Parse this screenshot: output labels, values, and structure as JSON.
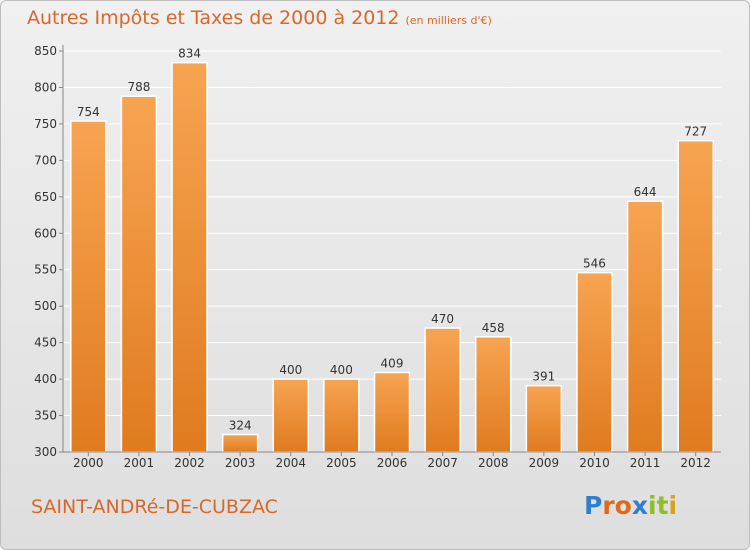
{
  "title": "Autres Impôts et Taxes de 2000 à 2012",
  "subtitle": "(en milliers d'€)",
  "footer": {
    "city": "SAINT-ANDRé-DE-CUBZAC",
    "logo": "Proxiti"
  },
  "colors": {
    "bar_top": "#f7a452",
    "bar_bottom": "#e07b1f",
    "title": "#d8682a"
  },
  "chart_data": {
    "type": "bar",
    "title": "Autres Impôts et Taxes de 2000 à 2012",
    "subtitle": "(en milliers d'€)",
    "xlabel": "",
    "ylabel": "",
    "categories": [
      "2000",
      "2001",
      "2002",
      "2003",
      "2004",
      "2005",
      "2006",
      "2007",
      "2008",
      "2009",
      "2010",
      "2011",
      "2012"
    ],
    "values": [
      754,
      788,
      834,
      324,
      400,
      400,
      409,
      470,
      458,
      391,
      546,
      644,
      727
    ],
    "ylim": [
      300,
      850
    ],
    "yticks": [
      300,
      350,
      400,
      450,
      500,
      550,
      600,
      650,
      700,
      750,
      800,
      850
    ],
    "grid": true
  }
}
